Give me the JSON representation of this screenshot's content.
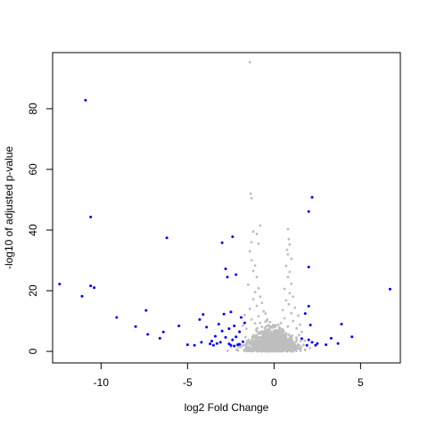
{
  "chart_data": {
    "type": "scatter",
    "title": "",
    "xlabel": "log2 Fold Change",
    "ylabel": "-log10 of adjusted p-value",
    "xlim": [
      -12.8,
      7.3
    ],
    "ylim": [
      -3.8,
      98.5
    ],
    "x_ticks": [
      -10,
      -5,
      0,
      5
    ],
    "y_ticks": [
      0,
      20,
      40,
      60,
      80
    ],
    "grid": false,
    "legend": "none",
    "colors": {
      "significant": "#0000ff",
      "not_significant": "#bebebe",
      "axis": "#000000"
    },
    "series": [
      {
        "role": "not_significant",
        "values": [
          [
            -1.4,
            95.3
          ],
          [
            -1.35,
            52.0
          ],
          [
            -1.3,
            50.5
          ],
          [
            -1.2,
            39.5
          ],
          [
            -1.0,
            38.7
          ],
          [
            -0.8,
            41.5
          ],
          [
            -1.3,
            36.0
          ],
          [
            -0.9,
            35.5
          ],
          [
            -1.4,
            33.0
          ],
          [
            -1.3,
            30.0
          ],
          [
            -1.1,
            28.3
          ],
          [
            -1.2,
            26.5
          ],
          [
            -1.0,
            24.5
          ],
          [
            -1.5,
            22.0
          ],
          [
            -0.9,
            20.8
          ],
          [
            -1.1,
            19.5
          ],
          [
            -0.8,
            18.0
          ],
          [
            -1.2,
            17.2
          ],
          [
            -0.7,
            16.0
          ],
          [
            -1.0,
            15.0
          ],
          [
            -1.4,
            14.0
          ],
          [
            -0.6,
            13.2
          ],
          [
            -1.7,
            12.0
          ],
          [
            -0.9,
            11.6
          ],
          [
            -1.3,
            10.5
          ],
          [
            -0.5,
            9.8
          ],
          [
            -1.1,
            9.2
          ],
          [
            -1.8,
            8.5
          ],
          [
            -0.7,
            8.1
          ],
          [
            -1.6,
            7.5
          ],
          [
            -0.4,
            7.2
          ],
          [
            -1.0,
            6.6
          ],
          [
            -2.0,
            6.2
          ],
          [
            -0.6,
            5.8
          ],
          [
            0.8,
            40.3
          ],
          [
            0.85,
            37.0
          ],
          [
            0.9,
            35.2
          ],
          [
            0.75,
            33.5
          ],
          [
            0.8,
            32.0
          ],
          [
            1.0,
            30.5
          ],
          [
            0.7,
            28.2
          ],
          [
            0.9,
            26.2
          ],
          [
            0.8,
            24.5
          ],
          [
            1.0,
            22.3
          ],
          [
            0.6,
            20.6
          ],
          [
            0.9,
            19.2
          ],
          [
            1.1,
            18.0
          ],
          [
            0.7,
            16.8
          ],
          [
            0.85,
            15.5
          ],
          [
            1.2,
            14.4
          ],
          [
            0.5,
            13.6
          ],
          [
            1.0,
            12.6
          ],
          [
            1.4,
            11.8
          ],
          [
            0.6,
            10.9
          ],
          [
            1.1,
            10.0
          ],
          [
            0.4,
            9.3
          ],
          [
            1.5,
            8.8
          ],
          [
            0.8,
            8.2
          ],
          [
            1.3,
            7.6
          ],
          [
            0.3,
            7.0
          ],
          [
            1.6,
            6.4
          ],
          [
            0.7,
            6.0
          ]
        ]
      },
      {
        "role": "significant",
        "values": [
          [
            -10.9,
            82.8
          ],
          [
            -10.6,
            44.3
          ],
          [
            -6.2,
            37.4
          ],
          [
            -12.4,
            22.2
          ],
          [
            -11.1,
            18.2
          ],
          [
            -10.6,
            21.6
          ],
          [
            -10.4,
            21.0
          ],
          [
            -9.1,
            11.2
          ],
          [
            -7.4,
            13.5
          ],
          [
            -8.0,
            8.2
          ],
          [
            -7.3,
            5.6
          ],
          [
            -6.6,
            4.3
          ],
          [
            -6.4,
            6.4
          ],
          [
            -5.5,
            8.4
          ],
          [
            -5.0,
            2.2
          ],
          [
            -4.6,
            2.0
          ],
          [
            -4.3,
            10.5
          ],
          [
            -4.2,
            3.0
          ],
          [
            -4.1,
            12.2
          ],
          [
            -3.9,
            8.0
          ],
          [
            -3.7,
            2.5
          ],
          [
            -3.6,
            3.4
          ],
          [
            -3.5,
            2.0
          ],
          [
            -3.4,
            5.0
          ],
          [
            -3.3,
            2.6
          ],
          [
            -3.2,
            9.0
          ],
          [
            -3.1,
            3.0
          ],
          [
            -3.0,
            6.7
          ],
          [
            -2.9,
            12.3
          ],
          [
            -2.8,
            4.6
          ],
          [
            -2.8,
            27.2
          ],
          [
            -2.7,
            24.5
          ],
          [
            -2.6,
            7.5
          ],
          [
            -2.5,
            13.0
          ],
          [
            -2.4,
            3.8
          ],
          [
            -2.3,
            8.4
          ],
          [
            -2.2,
            25.3
          ],
          [
            -2.2,
            4.8
          ],
          [
            -2.1,
            2.2
          ],
          [
            -2.0,
            6.5
          ],
          [
            -1.9,
            11.2
          ],
          [
            -1.8,
            3.2
          ],
          [
            -1.7,
            9.4
          ],
          [
            -3.0,
            35.8
          ],
          [
            -2.4,
            37.8
          ],
          [
            -2.5,
            2.0
          ],
          [
            -2.0,
            2.3
          ],
          [
            -2.6,
            2.5
          ],
          [
            -2.3,
            1.8
          ],
          [
            2.2,
            50.8
          ],
          [
            2.0,
            46.1
          ],
          [
            2.0,
            27.8
          ],
          [
            2.0,
            14.9
          ],
          [
            1.8,
            12.5
          ],
          [
            2.1,
            8.7
          ],
          [
            1.6,
            4.2
          ],
          [
            2.0,
            3.8
          ],
          [
            2.2,
            3.0
          ],
          [
            2.5,
            2.6
          ],
          [
            3.0,
            2.2
          ],
          [
            3.3,
            4.3
          ],
          [
            3.7,
            2.6
          ],
          [
            3.9,
            9.0
          ],
          [
            4.5,
            4.8
          ],
          [
            6.7,
            20.5
          ],
          [
            2.4,
            2.0
          ],
          [
            1.9,
            2.0
          ]
        ]
      }
    ],
    "density_cloud": {
      "role": "not_significant",
      "x_center": -0.1,
      "x_spread": 1.25,
      "y_max": 5.5,
      "count": 1200
    }
  }
}
